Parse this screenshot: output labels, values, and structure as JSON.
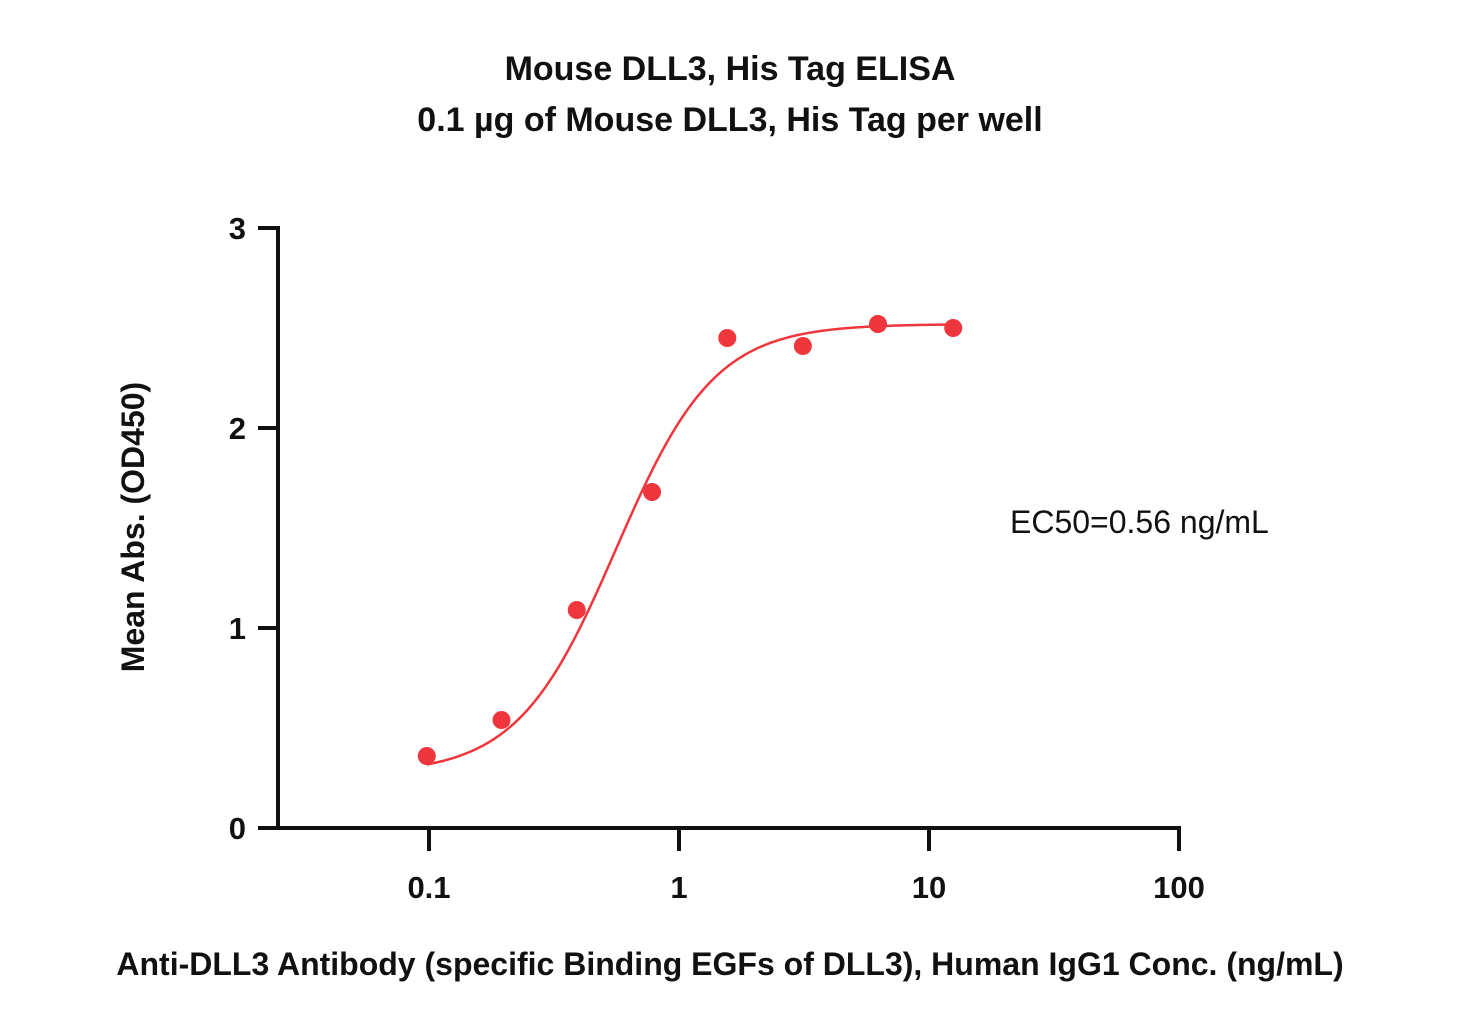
{
  "chart_data": {
    "type": "scatter",
    "title": "Mouse DLL3, His Tag ELISA",
    "subtitle": "0.1 µg of Mouse DLL3, His Tag per well",
    "xlabel": "Anti-DLL3 Antibody (specific Binding EGFs of DLL3), Human IgG1 Conc. (ng/mL)",
    "ylabel": "Mean Abs. (OD450)",
    "x_scale": "log",
    "xlim": [
      0.03,
      100
    ],
    "ylim": [
      0,
      3
    ],
    "x_ticks": [
      "0.1",
      "1",
      "10",
      "100"
    ],
    "y_ticks": [
      "0",
      "1",
      "2",
      "3"
    ],
    "grid": false,
    "annotation": "EC50=0.56 ng/mL",
    "series": [
      {
        "points": [
          {
            "x": 0.098,
            "y": 0.36
          },
          {
            "x": 0.195,
            "y": 0.54
          },
          {
            "x": 0.39,
            "y": 1.09
          },
          {
            "x": 0.78,
            "y": 1.68
          },
          {
            "x": 1.56,
            "y": 2.45
          },
          {
            "x": 3.13,
            "y": 2.41
          },
          {
            "x": 6.25,
            "y": 2.52
          },
          {
            "x": 12.5,
            "y": 2.5
          }
        ],
        "fit": {
          "model": "4PL",
          "bottom": 0.27,
          "top": 2.52,
          "ec50": 0.56,
          "hill": 2.2
        },
        "color": "#f0363d"
      }
    ]
  }
}
